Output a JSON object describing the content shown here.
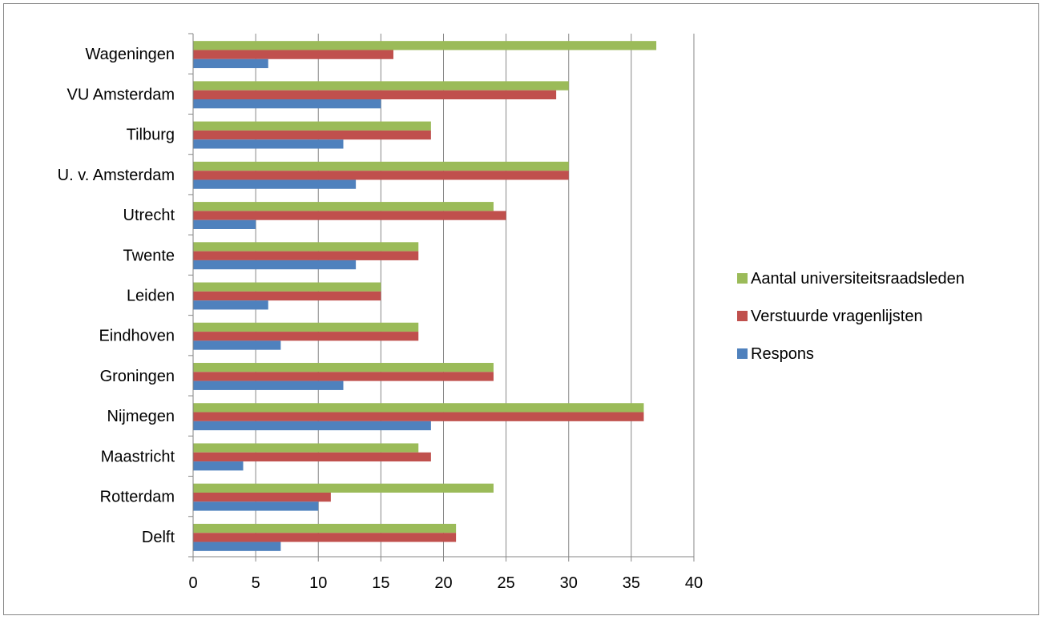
{
  "chart_data": {
    "type": "bar",
    "orientation": "horizontal",
    "categories": [
      "Delft",
      "Rotterdam",
      "Maastricht",
      "Nijmegen",
      "Groningen",
      "Eindhoven",
      "Leiden",
      "Twente",
      "Utrecht",
      "U. v. Amsterdam",
      "Tilburg",
      "VU Amsterdam",
      "Wageningen"
    ],
    "series": [
      {
        "name": "Respons",
        "color": "#4F81BD",
        "values": [
          7,
          10,
          4,
          19,
          12,
          7,
          6,
          13,
          5,
          13,
          12,
          15,
          6
        ]
      },
      {
        "name": "Verstuurde vragenlijsten",
        "color": "#C0504D",
        "values": [
          21,
          11,
          19,
          36,
          24,
          18,
          15,
          18,
          25,
          30,
          19,
          29,
          16
        ]
      },
      {
        "name": "Aantal universiteitsraadsleden",
        "color": "#9BBB59",
        "values": [
          21,
          24,
          18,
          36,
          24,
          18,
          15,
          18,
          24,
          30,
          19,
          30,
          37
        ]
      }
    ],
    "xlim": [
      0,
      40
    ],
    "xticks": [
      "0",
      "5",
      "10",
      "15",
      "20",
      "25",
      "30",
      "35",
      "40"
    ],
    "grid": true,
    "legend": {
      "position": "right",
      "entries": [
        {
          "label": "Aantal universiteitsraadsleden",
          "color": "#9BBB59"
        },
        {
          "label": "Verstuurde vragenlijsten",
          "color": "#C0504D"
        },
        {
          "label": "Respons",
          "color": "#4F81BD"
        }
      ]
    },
    "title": "",
    "xlabel": "",
    "ylabel": ""
  }
}
